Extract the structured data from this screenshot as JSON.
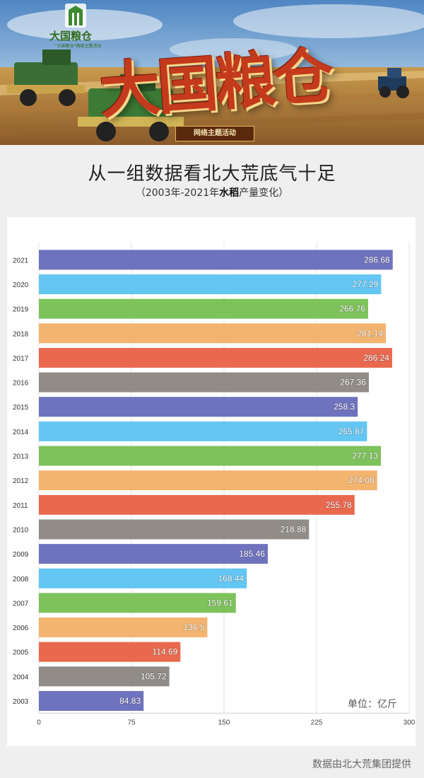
{
  "banner": {
    "logo_text": "大国粮仓",
    "logo_sub": "\"大国粮仓\"网络主题活动",
    "title": "大国粮仓",
    "tag": "网络主题活动"
  },
  "heading": "从一组数据看北大荒底气十足",
  "subheading": {
    "prefix": "（2003年-2021年",
    "bold": "水稻",
    "suffix": "产量变化）"
  },
  "unit_label": "单位：亿斤",
  "source": "数据由北大荒集团提供",
  "colors": [
    "#6f72bd",
    "#63c6f3",
    "#7ec25c",
    "#f3b46f",
    "#e9694f",
    "#918c87"
  ],
  "chart_data": {
    "type": "bar",
    "orientation": "horizontal",
    "title": "",
    "xlabel": "",
    "ylabel": "",
    "xlim": [
      0,
      300
    ],
    "xticks": [
      "0",
      "75",
      "150",
      "225",
      "300"
    ],
    "grid": true,
    "categories": [
      "2021",
      "2020",
      "2019",
      "2018",
      "2017",
      "2016",
      "2015",
      "2014",
      "2013",
      "2012",
      "2011",
      "2010",
      "2009",
      "2008",
      "2007",
      "2006",
      "2005",
      "2004",
      "2003"
    ],
    "values": [
      286.68,
      277.29,
      266.76,
      281.14,
      286.24,
      267.36,
      258.3,
      265.87,
      277.13,
      274.08,
      255.78,
      218.88,
      185.46,
      168.44,
      159.61,
      136.5,
      114.69,
      105.72,
      84.83
    ],
    "value_labels": [
      "286.68",
      "277.29",
      "266.76",
      "281.14",
      "286.24",
      "267.36",
      "258.3",
      "265.87",
      "277.13",
      "274.08",
      "255.78",
      "218.88",
      "185.46",
      "168.44",
      "159.61",
      "136.5",
      "114.69",
      "105.72",
      "84.83"
    ]
  }
}
